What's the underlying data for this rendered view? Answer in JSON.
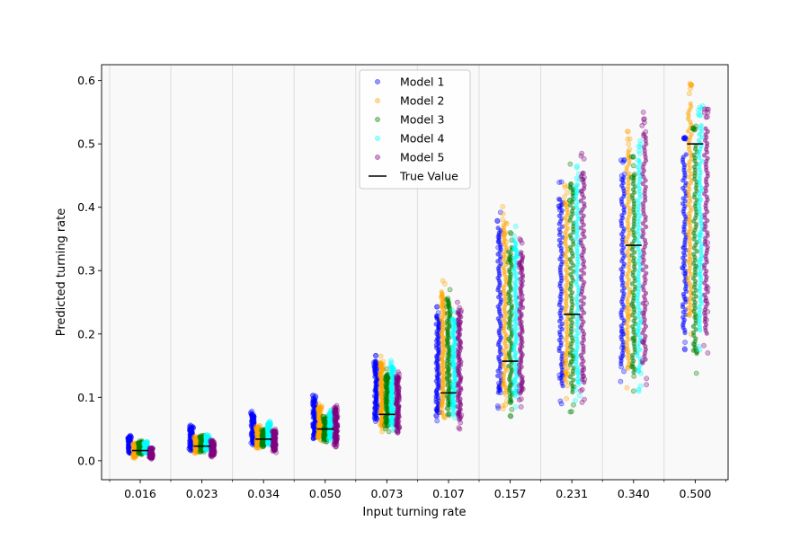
{
  "chart_data": {
    "type": "scatter",
    "title": "",
    "xlabel": "Input turning rate",
    "ylabel": "Predicted turning rate",
    "categories": [
      "0.016",
      "0.023",
      "0.034",
      "0.050",
      "0.073",
      "0.107",
      "0.157",
      "0.231",
      "0.340",
      "0.500"
    ],
    "true_values": [
      0.016,
      0.023,
      0.034,
      0.05,
      0.073,
      0.107,
      0.157,
      0.231,
      0.34,
      0.5
    ],
    "ylim": [
      -0.03,
      0.625
    ],
    "yticks": [
      "0.0",
      "0.1",
      "0.2",
      "0.3",
      "0.4",
      "0.5",
      "0.6"
    ],
    "grid": "vertical separators between groups",
    "legend_position": "top-center",
    "series": [
      {
        "name": "Model 1",
        "color": "#0000ff",
        "ranges": [
          [
            0.012,
            0.04
          ],
          [
            0.016,
            0.056
          ],
          [
            0.025,
            0.078
          ],
          [
            0.035,
            0.103
          ],
          [
            0.062,
            0.166
          ],
          [
            0.063,
            0.243
          ],
          [
            0.083,
            0.392
          ],
          [
            0.09,
            0.44
          ],
          [
            0.125,
            0.475
          ],
          [
            0.175,
            0.51
          ]
        ]
      },
      {
        "name": "Model 2",
        "color": "#ffa500",
        "ranges": [
          [
            0.004,
            0.028
          ],
          [
            0.012,
            0.038
          ],
          [
            0.02,
            0.055
          ],
          [
            0.032,
            0.09
          ],
          [
            0.046,
            0.165
          ],
          [
            0.068,
            0.284
          ],
          [
            0.082,
            0.401
          ],
          [
            0.098,
            0.435
          ],
          [
            0.115,
            0.52
          ],
          [
            0.2,
            0.595
          ]
        ]
      },
      {
        "name": "Model 3",
        "color": "#008000",
        "ranges": [
          [
            0.01,
            0.031
          ],
          [
            0.014,
            0.04
          ],
          [
            0.022,
            0.05
          ],
          [
            0.03,
            0.07
          ],
          [
            0.046,
            0.145
          ],
          [
            0.072,
            0.27
          ],
          [
            0.07,
            0.36
          ],
          [
            0.077,
            0.468
          ],
          [
            0.11,
            0.48
          ],
          [
            0.138,
            0.528
          ]
        ]
      },
      {
        "name": "Model 4",
        "color": "#00ffff",
        "ranges": [
          [
            0.012,
            0.03
          ],
          [
            0.016,
            0.041
          ],
          [
            0.025,
            0.062
          ],
          [
            0.032,
            0.08
          ],
          [
            0.048,
            0.158
          ],
          [
            0.068,
            0.238
          ],
          [
            0.085,
            0.37
          ],
          [
            0.095,
            0.465
          ],
          [
            0.11,
            0.505
          ],
          [
            0.175,
            0.56
          ]
        ]
      },
      {
        "name": "Model 5",
        "color": "#800080",
        "ranges": [
          [
            0.003,
            0.02
          ],
          [
            0.006,
            0.032
          ],
          [
            0.013,
            0.05
          ],
          [
            0.022,
            0.087
          ],
          [
            0.044,
            0.14
          ],
          [
            0.05,
            0.25
          ],
          [
            0.085,
            0.35
          ],
          [
            0.092,
            0.485
          ],
          [
            0.12,
            0.55
          ],
          [
            0.17,
            0.555
          ]
        ]
      }
    ],
    "true_value_label": "True Value",
    "true_value_color": "#000000"
  }
}
